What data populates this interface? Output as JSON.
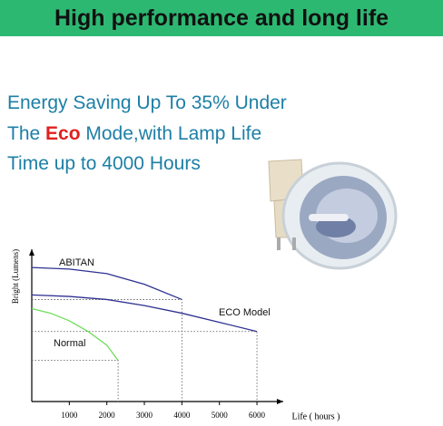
{
  "header": {
    "title": "High performance and long life"
  },
  "text": {
    "line1": "Energy Saving Up To 35% Under",
    "line2": {
      "before": "The ",
      "highlight": "Eco",
      "after": " Mode,with Lamp Life"
    },
    "line3": "Time up to 4000 Hours"
  },
  "chart_data": {
    "type": "line",
    "x_label": "Life ( hours )",
    "y_label": "Bright (Lumens)",
    "xlim": [
      0,
      6700
    ],
    "ylim": [
      0,
      100
    ],
    "xticks": [
      1000,
      2000,
      3000,
      4000,
      5000,
      6000
    ],
    "series": [
      {
        "name": "ABITAN",
        "color": "#2e3192",
        "x": [
          0,
          1000,
          2000,
          3000,
          4000
        ],
        "y": [
          88,
          87,
          84,
          77,
          67
        ]
      },
      {
        "name": "ECO Model",
        "color": "#2e3192",
        "x": [
          0,
          1000,
          2000,
          3000,
          4000,
          5000,
          6000
        ],
        "y": [
          70,
          69,
          67,
          63,
          58,
          52,
          46
        ]
      },
      {
        "name": "Normal",
        "color": "#6fdc5a",
        "x": [
          0,
          500,
          1000,
          1500,
          2000,
          2300
        ],
        "y": [
          61,
          58,
          53,
          46,
          37,
          27
        ]
      }
    ]
  }
}
